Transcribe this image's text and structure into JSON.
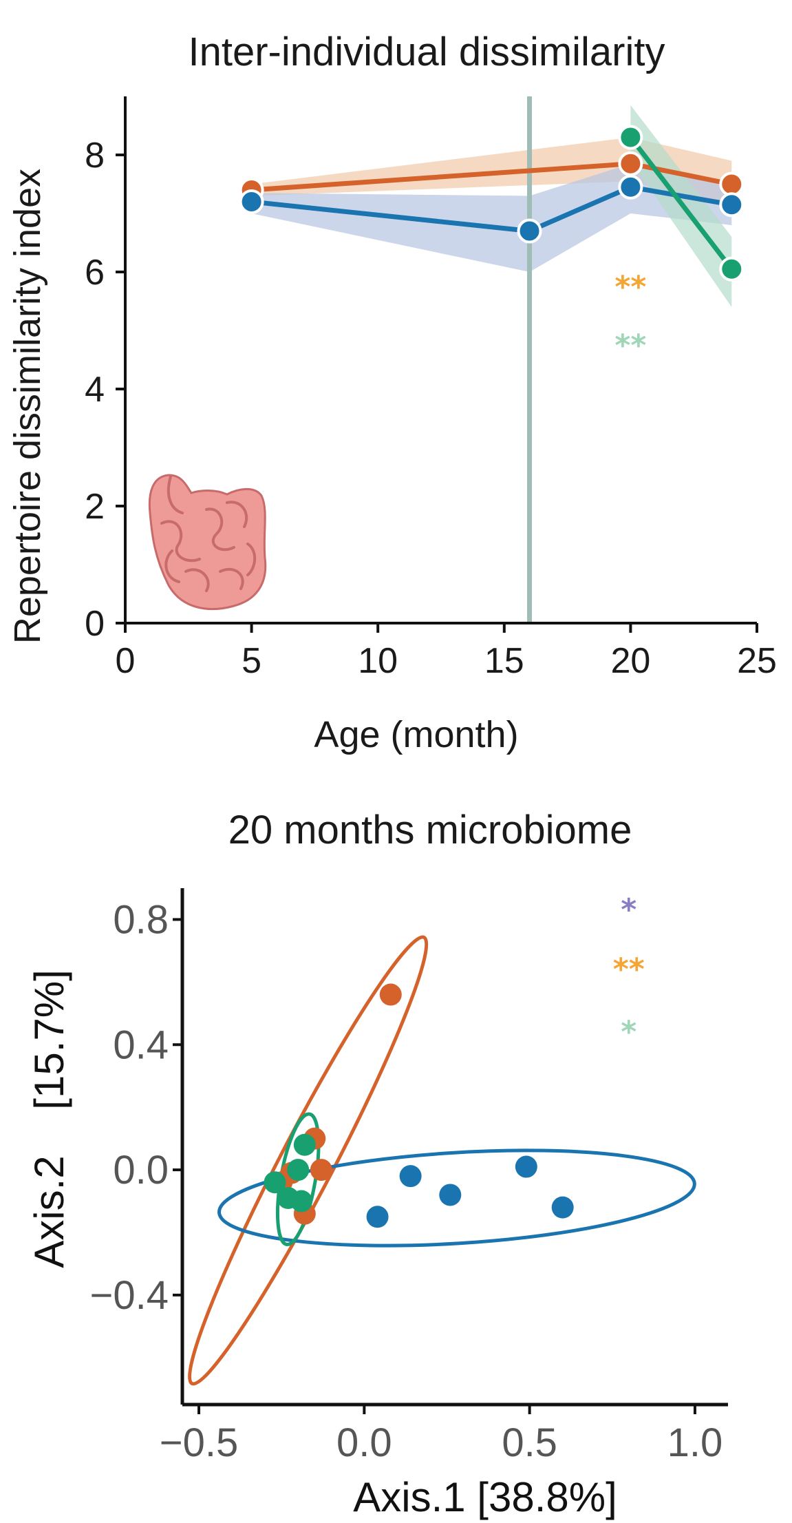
{
  "colors": {
    "orange": "#d4622a",
    "blue": "#1a74b0",
    "green": "#18a070",
    "orange_band": "#f2c9a8",
    "blue_band": "#b7c5e2",
    "green_band": "#b5dccb",
    "vline": "#9fbcb6",
    "star_orange": "#f4a634",
    "star_green": "#9fd6b8",
    "star_purple": "#8a7dc4",
    "axis": "#111111",
    "grey_text": "#555555"
  },
  "chart_data": [
    {
      "type": "line",
      "title": "Inter-individual dissimilarity",
      "xlabel": "Age (month)",
      "ylabel": "Repertoire dissimilarity index",
      "xlim": [
        0,
        25
      ],
      "ylim": [
        0,
        9
      ],
      "xticks": [
        0,
        5,
        10,
        15,
        20,
        25
      ],
      "yticks": [
        0,
        2,
        4,
        6,
        8
      ],
      "vline_x": 16,
      "series": [
        {
          "name": "orange",
          "color": "#d4622a",
          "x": [
            5,
            20,
            24
          ],
          "y": [
            7.4,
            7.85,
            7.5
          ],
          "band_low": [
            7.3,
            7.55,
            7.1
          ],
          "band_high": [
            7.5,
            8.3,
            7.9
          ]
        },
        {
          "name": "blue",
          "color": "#1a74b0",
          "x": [
            5,
            16,
            20,
            24
          ],
          "y": [
            7.2,
            6.7,
            7.45,
            7.15
          ],
          "band_low": [
            7.0,
            6.0,
            7.0,
            6.8
          ],
          "band_high": [
            7.35,
            7.3,
            7.85,
            7.45
          ]
        },
        {
          "name": "green",
          "color": "#18a070",
          "x": [
            20,
            24
          ],
          "y": [
            8.3,
            6.05
          ],
          "band_low": [
            7.9,
            5.4
          ],
          "band_high": [
            8.85,
            6.6
          ]
        }
      ],
      "annotations": [
        {
          "text": "**",
          "color": "#f4a634",
          "x": 20,
          "y": 5.9
        },
        {
          "text": "**",
          "color": "#9fd6b8",
          "x": 20,
          "y": 4.9
        }
      ],
      "icon": "intestine-icon"
    },
    {
      "type": "scatter",
      "title": "20 months microbiome",
      "xlabel": "Axis.1    [38.8%]",
      "ylabel": "Axis.2    [15.7%]",
      "xlim": [
        -0.55,
        1.1
      ],
      "ylim": [
        -0.75,
        0.9
      ],
      "xticks": [
        -0.5,
        0.0,
        0.5,
        1.0
      ],
      "xtick_labels": [
        "−0.5",
        "0.0",
        "0.5",
        "1.0"
      ],
      "yticks": [
        -0.4,
        0.0,
        0.4,
        0.8
      ],
      "ytick_labels": [
        "−0.4",
        "0.0",
        "0.4",
        "0.8"
      ],
      "series": [
        {
          "name": "orange",
          "color": "#d4622a",
          "points": [
            [
              0.08,
              0.56
            ],
            [
              -0.15,
              0.1
            ],
            [
              -0.13,
              0.0
            ],
            [
              -0.22,
              -0.01
            ],
            [
              -0.25,
              -0.04
            ],
            [
              -0.18,
              -0.14
            ]
          ],
          "ellipse": {
            "cx": -0.17,
            "cy": 0.03,
            "rx": 0.76,
            "ry": 0.085,
            "angle_deg": 62.5
          }
        },
        {
          "name": "blue",
          "color": "#1a74b0",
          "points": [
            [
              0.14,
              -0.02
            ],
            [
              0.26,
              -0.08
            ],
            [
              0.49,
              0.01
            ],
            [
              0.6,
              -0.12
            ],
            [
              0.04,
              -0.15
            ]
          ],
          "ellipse": {
            "cx": 0.28,
            "cy": -0.09,
            "rx": 0.72,
            "ry": 0.145,
            "angle_deg": 3.5
          }
        },
        {
          "name": "green",
          "color": "#18a070",
          "points": [
            [
              -0.18,
              0.08
            ],
            [
              -0.2,
              0.0
            ],
            [
              -0.27,
              -0.04
            ],
            [
              -0.23,
              -0.09
            ],
            [
              -0.19,
              -0.1
            ]
          ],
          "ellipse": {
            "cx": -0.2,
            "cy": -0.03,
            "rx": 0.2,
            "ry": 0.055,
            "angle_deg": 80
          }
        }
      ],
      "annotations": [
        {
          "text": "*",
          "color": "#8a7dc4",
          "x": 0.8,
          "y": 0.86
        },
        {
          "text": "**",
          "color": "#f4a634",
          "x": 0.8,
          "y": 0.67
        },
        {
          "text": "*",
          "color": "#9fd6b8",
          "x": 0.8,
          "y": 0.47
        }
      ]
    }
  ]
}
